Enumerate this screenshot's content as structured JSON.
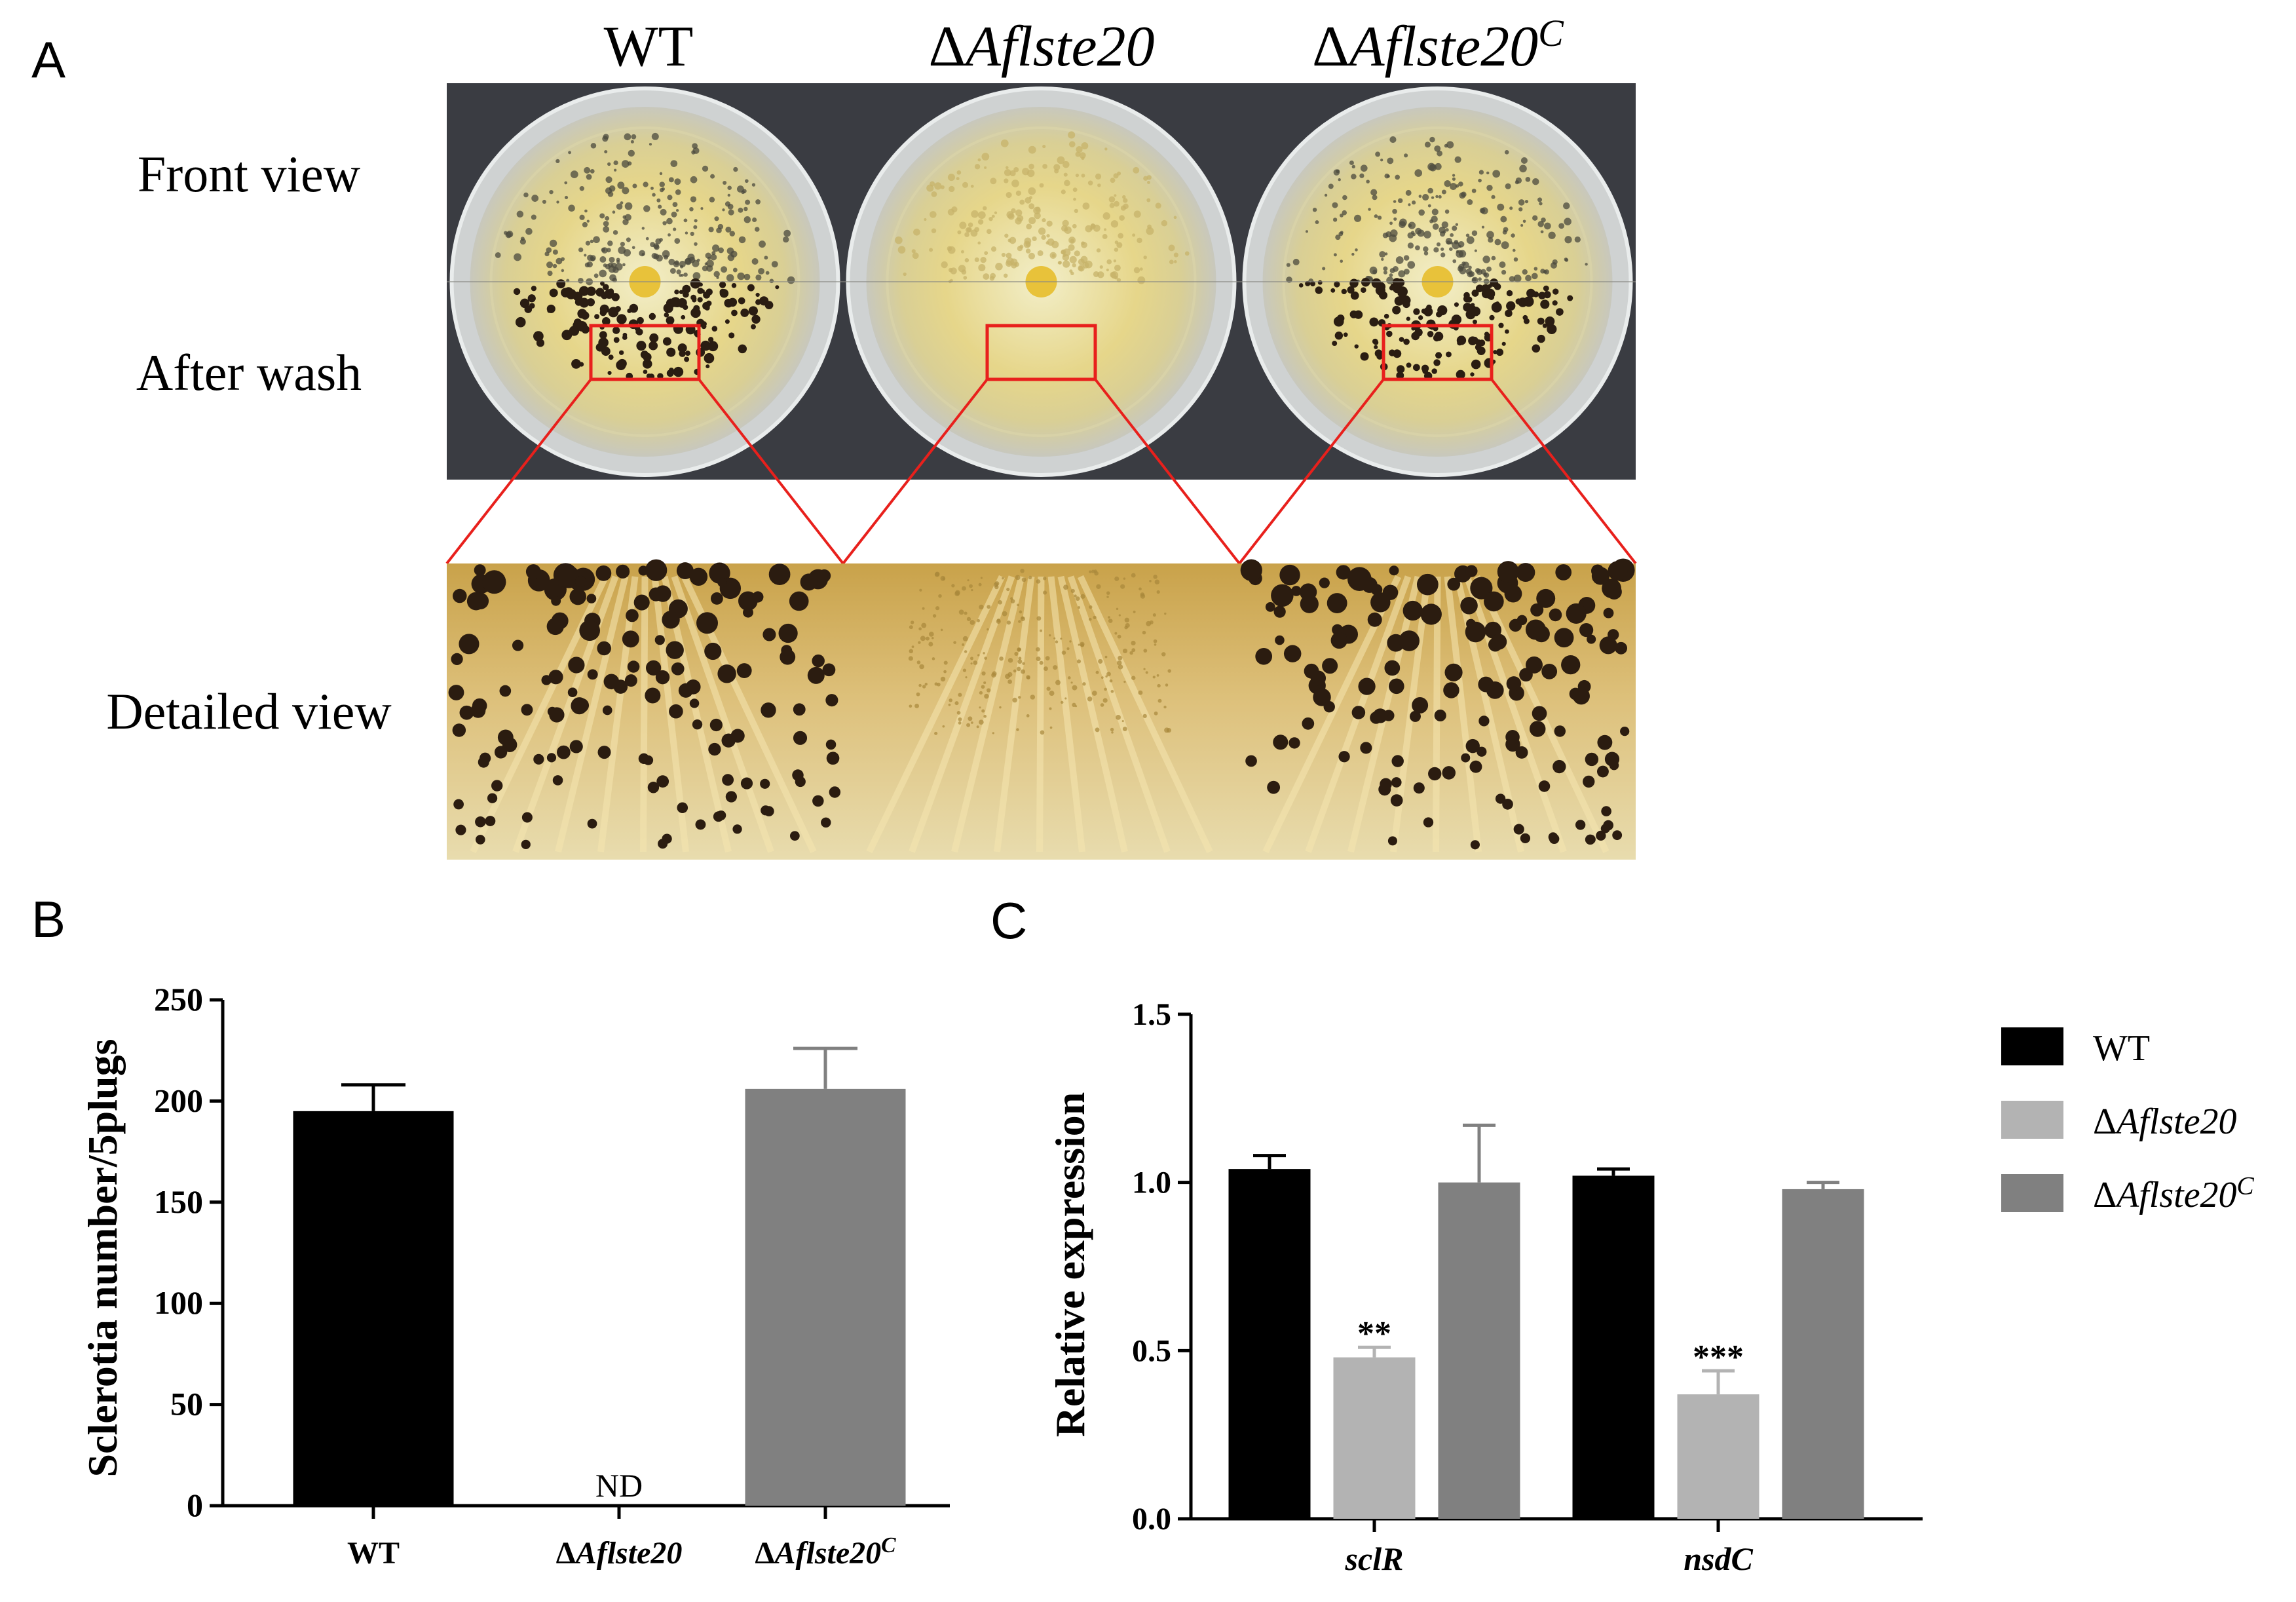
{
  "panel_a": {
    "label": "A",
    "columns": [
      {
        "prefix": "",
        "name": "WT",
        "sup": ""
      },
      {
        "prefix": "Δ",
        "name": "Aflste20",
        "sup": ""
      },
      {
        "prefix": "Δ",
        "name": "Aflste20",
        "sup": "C"
      }
    ],
    "rows": [
      "Front view",
      "After wash",
      "Detailed view"
    ],
    "sclerotia_visible": [
      true,
      false,
      true
    ]
  },
  "colors": {
    "wt": "#000000",
    "mutant": "#b3b3b3",
    "complement": "#808080"
  },
  "chart_data": [
    {
      "panel": "B",
      "type": "bar",
      "categories": [
        {
          "prefix": "",
          "name": "WT",
          "sup": ""
        },
        {
          "prefix": "Δ",
          "name": "Aflste20",
          "sup": ""
        },
        {
          "prefix": "Δ",
          "name": "Aflste20",
          "sup": "C"
        }
      ],
      "values": [
        195,
        0,
        206
      ],
      "errors": [
        13,
        0,
        20
      ],
      "annotations": [
        "",
        "ND",
        ""
      ],
      "ylabel": "Sclerotia number/5plugs",
      "ylim": [
        0,
        250
      ],
      "yticks": [
        "0",
        "50",
        "100",
        "150",
        "200",
        "250"
      ],
      "grid": false
    },
    {
      "panel": "C",
      "type": "bar",
      "categories": [
        "sclR",
        "nsdC"
      ],
      "series": [
        {
          "name": {
            "prefix": "",
            "name": "WT",
            "sup": ""
          },
          "values": [
            1.04,
            1.02
          ],
          "errors": [
            0.04,
            0.02
          ],
          "stars": [
            "",
            ""
          ]
        },
        {
          "name": {
            "prefix": "Δ",
            "name": "Aflste20",
            "sup": ""
          },
          "values": [
            0.48,
            0.37
          ],
          "errors": [
            0.03,
            0.07
          ],
          "stars": [
            "**",
            "***"
          ]
        },
        {
          "name": {
            "prefix": "Δ",
            "name": "Aflste20",
            "sup": "C"
          },
          "values": [
            1.0,
            0.98
          ],
          "errors": [
            0.17,
            0.02
          ],
          "stars": [
            "",
            ""
          ]
        }
      ],
      "ylabel": "Relative expression",
      "ylim": [
        0,
        1.5
      ],
      "yticks": [
        "0.0",
        "0.5",
        "1.0",
        "1.5"
      ],
      "legend": "right",
      "grid": false
    }
  ]
}
